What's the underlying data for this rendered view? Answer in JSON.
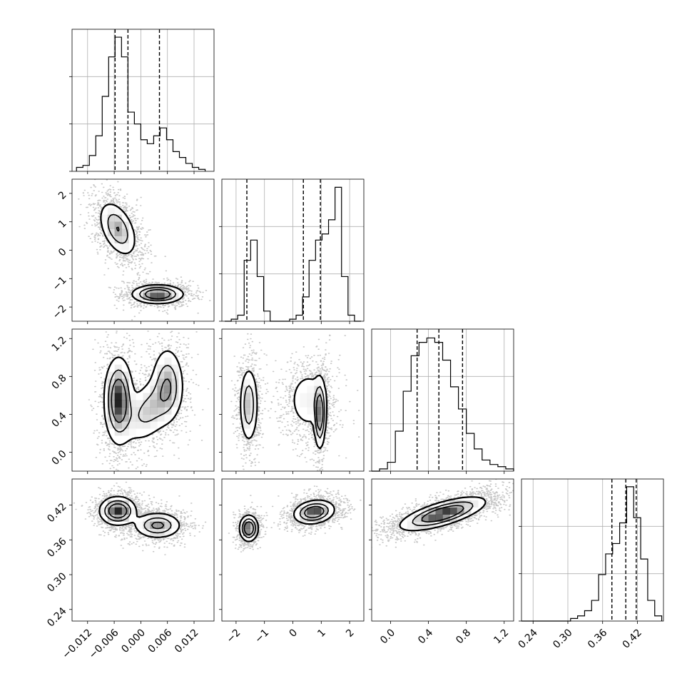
{
  "figure": {
    "type": "corner_plot",
    "description": ""
  },
  "chart_data": {
    "type": "corner",
    "n_params": 4,
    "params": [
      {
        "index": 0,
        "range": [
          -0.0155,
          0.0165
        ],
        "ticks": [
          -0.012,
          -0.006,
          0.0,
          0.006,
          0.012
        ],
        "tick_labels": [
          "−0.012",
          "−0.006",
          "0.000",
          "0.006",
          "0.012"
        ]
      },
      {
        "index": 1,
        "range": [
          -2.5,
          2.5
        ],
        "ticks": [
          -2,
          -1,
          0,
          1,
          2
        ],
        "tick_labels": [
          "−2",
          "−1",
          "0",
          "1",
          "2"
        ]
      },
      {
        "index": 2,
        "range": [
          -0.2,
          1.3
        ],
        "ticks": [
          0.0,
          0.4,
          0.8,
          1.2
        ],
        "tick_labels": [
          "0.0",
          "0.4",
          "0.8",
          "1.2"
        ]
      },
      {
        "index": 3,
        "range": [
          0.22,
          0.465
        ],
        "ticks": [
          0.24,
          0.3,
          0.36,
          0.42
        ],
        "tick_labels": [
          "0.24",
          "0.30",
          "0.36",
          "0.42"
        ]
      }
    ],
    "histograms": [
      {
        "param": 0,
        "edges_range": [
          -0.0145,
          0.0145
        ],
        "counts": [
          2,
          3,
          8,
          18,
          38,
          58,
          68,
          58,
          30,
          24,
          16,
          14,
          18,
          22,
          16,
          10,
          7,
          4,
          2,
          1
        ],
        "quantiles": [
          -0.0058,
          -0.0029,
          0.0042
        ],
        "ymax": 72
      },
      {
        "param": 1,
        "edges_range": [
          -2.4,
          2.4
        ],
        "counts": [
          0,
          1,
          3,
          30,
          40,
          22,
          5,
          0,
          0,
          0,
          1,
          3,
          12,
          30,
          40,
          43,
          50,
          66,
          22,
          3,
          0
        ],
        "quantiles": [
          -1.62,
          0.37,
          0.97
        ],
        "ymax": 70
      },
      {
        "param": 2,
        "edges_range": [
          -0.2,
          1.3
        ],
        "counts": [
          0,
          1,
          4,
          18,
          36,
          52,
          58,
          60,
          58,
          50,
          38,
          28,
          17,
          10,
          5,
          3,
          2,
          1
        ],
        "quantiles": [
          0.28,
          0.51,
          0.76
        ],
        "ymax": 64
      },
      {
        "param": 3,
        "edges_range": [
          0.22,
          0.462
        ],
        "counts": [
          0,
          0,
          0,
          0,
          0,
          0,
          0,
          1,
          2,
          4,
          8,
          18,
          26,
          30,
          38,
          52,
          40,
          24,
          8,
          2
        ],
        "quantiles": [
          0.376,
          0.4,
          0.418
        ],
        "ymax": 55
      }
    ],
    "pair_modes": {
      "0_1": [
        {
          "mean": [
            -0.0052,
            0.75
          ],
          "sd": [
            0.0021,
            0.48
          ],
          "corr": -0.45,
          "w": 0.55
        },
        {
          "mean": [
            0.0038,
            -1.55
          ],
          "sd": [
            0.0028,
            0.16
          ],
          "corr": 0.0,
          "w": 0.45
        }
      ],
      "0_2": [
        {
          "mean": [
            -0.005,
            0.55
          ],
          "sd": [
            0.0016,
            0.22
          ],
          "corr": 0.0,
          "w": 0.45
        },
        {
          "mean": [
            0.002,
            0.45
          ],
          "sd": [
            0.0032,
            0.18
          ],
          "corr": 0.45,
          "w": 0.3
        },
        {
          "mean": [
            0.006,
            0.72
          ],
          "sd": [
            0.0018,
            0.2
          ],
          "corr": 0.0,
          "w": 0.25
        }
      ],
      "0_3": [
        {
          "mean": [
            -0.0052,
            0.41
          ],
          "sd": [
            0.002,
            0.012
          ],
          "corr": 0.0,
          "w": 0.55
        },
        {
          "mean": [
            0.0038,
            0.385
          ],
          "sd": [
            0.0026,
            0.011
          ],
          "corr": 0.0,
          "w": 0.45
        }
      ],
      "1_2": [
        {
          "mean": [
            -1.55,
            0.5
          ],
          "sd": [
            0.16,
            0.2
          ],
          "corr": 0.0,
          "w": 0.35
        },
        {
          "mean": [
            0.55,
            0.55
          ],
          "sd": [
            0.4,
            0.18
          ],
          "corr": 0.0,
          "w": 0.35
        },
        {
          "mean": [
            0.95,
            0.4
          ],
          "sd": [
            0.1,
            0.18
          ],
          "corr": 0.0,
          "w": 0.3
        }
      ],
      "1_3": [
        {
          "mean": [
            -1.55,
            0.38
          ],
          "sd": [
            0.16,
            0.011
          ],
          "corr": 0.0,
          "w": 0.35
        },
        {
          "mean": [
            0.75,
            0.408
          ],
          "sd": [
            0.35,
            0.01
          ],
          "corr": 0.2,
          "w": 0.65
        }
      ],
      "2_3": [
        {
          "mean": [
            0.55,
            0.405
          ],
          "sd": [
            0.22,
            0.014
          ],
          "corr": 0.7,
          "w": 1.0
        }
      ]
    },
    "contour_levels": [
      0.6,
      0.35,
      0.12
    ]
  },
  "colors": {
    "line": "#000000",
    "grid": "#b0b0b0",
    "density": "#000000",
    "background": "#ffffff"
  }
}
